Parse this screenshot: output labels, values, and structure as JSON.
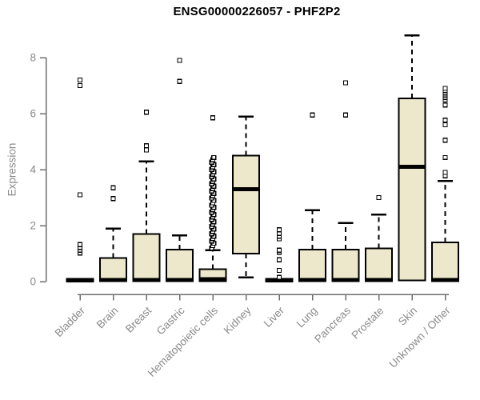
{
  "page": {
    "background": "#ffffff"
  },
  "chart_data": {
    "type": "boxplot",
    "title": "ENSG00000226057 - PHF2P2",
    "xlabel": "",
    "ylabel": "Expression",
    "ylim": [
      0,
      8.8
    ],
    "yticks": [
      0,
      2,
      4,
      6,
      8
    ],
    "grid": false,
    "legend": "none",
    "categories": [
      "Bladder",
      "Brain",
      "Breast",
      "Gastric",
      "Hematopoietic cells",
      "Kidney",
      "Liver",
      "Lung",
      "Pancreas",
      "Prostate",
      "Skin",
      "Unknown / Other"
    ],
    "boxes": [
      {
        "category": "Bladder",
        "q1": 0,
        "median": 0.05,
        "q3": 0.1,
        "whisker_low": null,
        "whisker_high": null,
        "outliers": [
          1.02,
          1.12,
          1.22,
          1.32,
          3.1,
          7.0,
          7.2
        ]
      },
      {
        "category": "Brain",
        "q1": 0.02,
        "median": 0.06,
        "q3": 0.85,
        "whisker_low": null,
        "whisker_high": 1.9,
        "outliers": [
          2.97,
          3.35
        ]
      },
      {
        "category": "Breast",
        "q1": 0.02,
        "median": 0.06,
        "q3": 1.7,
        "whisker_low": null,
        "whisker_high": 4.3,
        "outliers": [
          4.7,
          4.85,
          6.05
        ]
      },
      {
        "category": "Gastric",
        "q1": 0.02,
        "median": 0.06,
        "q3": 1.15,
        "whisker_low": null,
        "whisker_high": 1.65,
        "outliers": [
          7.15,
          7.9
        ]
      },
      {
        "category": "Hematopoietic cells",
        "q1": 0.02,
        "median": 0.08,
        "q3": 0.45,
        "whisker_low": null,
        "whisker_high": 1.12,
        "outliers": [
          5.85
        ],
        "outlier_band": {
          "min": 1.2,
          "max": 4.45
        }
      },
      {
        "category": "Kidney",
        "q1": 1.0,
        "median": 3.3,
        "q3": 4.5,
        "whisker_low": 0.15,
        "whisker_high": 5.9,
        "outliers": []
      },
      {
        "category": "Liver",
        "q1": 0,
        "median": 0.05,
        "q3": 0.1,
        "whisker_low": null,
        "whisker_high": null,
        "outliers": [
          0.15,
          0.4,
          0.78,
          1.05,
          1.12,
          1.53,
          1.62,
          1.72,
          1.85
        ]
      },
      {
        "category": "Lung",
        "q1": 0.02,
        "median": 0.06,
        "q3": 1.15,
        "whisker_low": null,
        "whisker_high": 2.55,
        "outliers": [
          5.95
        ]
      },
      {
        "category": "Pancreas",
        "q1": 0.02,
        "median": 0.06,
        "q3": 1.15,
        "whisker_low": null,
        "whisker_high": 2.1,
        "outliers": [
          5.95,
          7.1
        ]
      },
      {
        "category": "Prostate",
        "q1": 0.02,
        "median": 0.06,
        "q3": 1.18,
        "whisker_low": null,
        "whisker_high": 2.4,
        "outliers": [
          3.0
        ]
      },
      {
        "category": "Skin",
        "q1": 0.05,
        "median": 4.1,
        "q3": 6.55,
        "whisker_low": null,
        "whisker_high": 8.8,
        "outliers": []
      },
      {
        "category": "Unknown / Other",
        "q1": 0.02,
        "median": 0.06,
        "q3": 1.4,
        "whisker_low": null,
        "whisker_high": 3.6,
        "outliers": [
          3.78,
          3.9,
          4.43,
          5.05,
          5.6,
          5.77,
          6.31,
          6.5,
          6.58,
          6.66,
          6.74,
          6.82,
          6.9
        ]
      }
    ],
    "colors": {
      "box_fill": "#EDE8CB",
      "box_stroke": "#000000",
      "median": "#000000",
      "whisker": "#000000",
      "outlier_stroke": "#000000",
      "axis": "#6D6D6D",
      "tick_label": "#8A8A8A",
      "title": "#000000"
    }
  }
}
